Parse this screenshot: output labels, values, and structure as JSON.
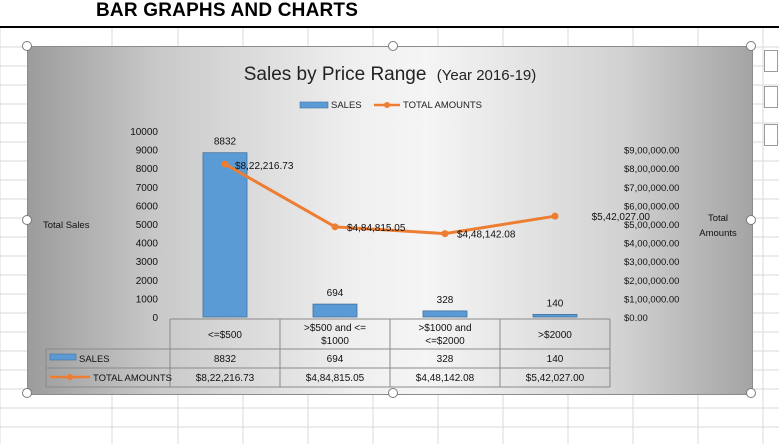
{
  "page": {
    "heading": "BAR GRAPHS AND CHARTS"
  },
  "chart_data": {
    "type": "bar",
    "title": "Sales by Price Range",
    "subtitle": "(Year 2016-19)",
    "categories": [
      "<=$500",
      ">$500  and <= $1000",
      ">$1000 and <=$2000",
      ">$2000"
    ],
    "category_lines": [
      [
        "<=$500"
      ],
      [
        ">$500  and <=",
        "$1000"
      ],
      [
        ">$1000 and",
        "<=$2000"
      ],
      [
        ">$2000"
      ]
    ],
    "series": [
      {
        "name": "SALES",
        "type": "bar",
        "axis": "left",
        "color": "#5b9bd5",
        "values": [
          8832,
          694,
          328,
          140
        ],
        "labels": [
          "8832",
          "694",
          "328",
          "140"
        ]
      },
      {
        "name": "TOTAL AMOUNTS",
        "type": "line",
        "axis": "right",
        "color": "#ed7d31",
        "values": [
          822216.73,
          484815.05,
          448142.08,
          542027.0
        ],
        "labels": [
          "$8,22,216.73",
          "$4,84,815.05",
          "$4,48,142.08",
          "$5,42,027.00"
        ]
      }
    ],
    "ylabel": "Total Sales",
    "y2label": [
      "Total",
      "Amounts"
    ],
    "ylim": [
      0,
      10000
    ],
    "y2lim": [
      0,
      900000
    ],
    "yticks": [
      "0",
      "1000",
      "2000",
      "3000",
      "4000",
      "5000",
      "6000",
      "7000",
      "8000",
      "9000",
      "10000"
    ],
    "y2ticks": [
      "$0.00",
      "$1,00,000.00",
      "$2,00,000.00",
      "$3,00,000.00",
      "$4,00,000.00",
      "$5,00,000.00",
      "$6,00,000.00",
      "$7,00,000.00",
      "$8,00,000.00",
      "$9,00,000.00"
    ],
    "legend_position": "top",
    "data_table": {
      "rows": [
        {
          "label": "SALES",
          "values": [
            "8832",
            "694",
            "328",
            "140"
          ]
        },
        {
          "label": "TOTAL AMOUNTS",
          "values": [
            "$8,22,216.73",
            "$4,84,815.05",
            "$4,48,142.08",
            "$5,42,027.00"
          ]
        }
      ]
    },
    "grid": false
  }
}
